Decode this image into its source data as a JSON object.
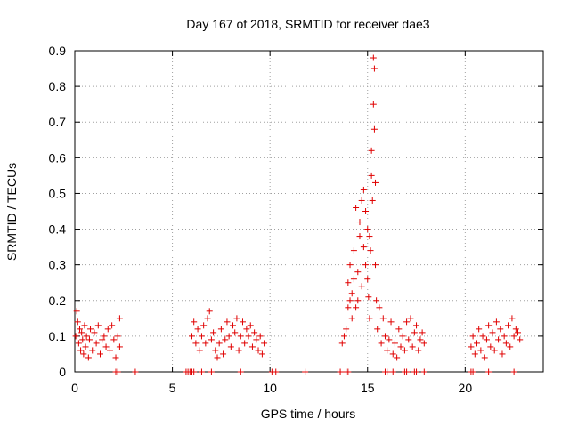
{
  "chart_data": {
    "type": "scatter",
    "title": "Day 167 of 2018, SRMTID for receiver dae3",
    "xlabel": "GPS time / hours",
    "ylabel": "SRMTID / TECUs",
    "xlim": [
      0,
      24
    ],
    "ylim": [
      0,
      0.9
    ],
    "x_ticks": [
      0,
      5,
      10,
      15,
      20
    ],
    "y_ticks": [
      0,
      0.1,
      0.2,
      0.3,
      0.4,
      0.5,
      0.6,
      0.7,
      0.8,
      0.9
    ],
    "x_tick_labels": [
      "0",
      "5",
      "10",
      "15",
      "20"
    ],
    "y_tick_labels": [
      "0",
      "0.1",
      "0.2",
      "0.3",
      "0.4",
      "0.5",
      "0.6",
      "0.7",
      "0.8",
      "0.9"
    ],
    "grid": true,
    "marker": "+",
    "series_color": "#e00000",
    "series": [
      {
        "name": "SRMTID",
        "points": [
          [
            0.05,
            0.1
          ],
          [
            0.1,
            0.17
          ],
          [
            0.15,
            0.14
          ],
          [
            0.2,
            0.08
          ],
          [
            0.25,
            0.12
          ],
          [
            0.3,
            0.06
          ],
          [
            0.35,
            0.11
          ],
          [
            0.4,
            0.09
          ],
          [
            0.45,
            0.05
          ],
          [
            0.5,
            0.13
          ],
          [
            0.55,
            0.07
          ],
          [
            0.6,
            0.1
          ],
          [
            0.7,
            0.04
          ],
          [
            0.75,
            0.09
          ],
          [
            0.8,
            0.12
          ],
          [
            0.9,
            0.06
          ],
          [
            1.0,
            0.11
          ],
          [
            1.1,
            0.08
          ],
          [
            1.2,
            0.13
          ],
          [
            1.3,
            0.05
          ],
          [
            1.4,
            0.09
          ],
          [
            1.5,
            0.1
          ],
          [
            1.6,
            0.07
          ],
          [
            1.7,
            0.12
          ],
          [
            1.8,
            0.06
          ],
          [
            1.9,
            0.13
          ],
          [
            2.0,
            0.09
          ],
          [
            2.1,
            0.04
          ],
          [
            2.2,
            0.1
          ],
          [
            2.3,
            0.15
          ],
          [
            2.3,
            0.07
          ],
          [
            6.0,
            0.1
          ],
          [
            6.1,
            0.14
          ],
          [
            6.2,
            0.08
          ],
          [
            6.3,
            0.12
          ],
          [
            6.4,
            0.06
          ],
          [
            6.5,
            0.1
          ],
          [
            6.6,
            0.13
          ],
          [
            6.7,
            0.08
          ],
          [
            6.8,
            0.15
          ],
          [
            6.9,
            0.17
          ],
          [
            7.0,
            0.09
          ],
          [
            7.1,
            0.11
          ],
          [
            7.2,
            0.06
          ],
          [
            7.3,
            0.04
          ],
          [
            7.4,
            0.08
          ],
          [
            7.5,
            0.12
          ],
          [
            7.6,
            0.05
          ],
          [
            7.7,
            0.09
          ],
          [
            7.8,
            0.14
          ],
          [
            7.9,
            0.1
          ],
          [
            8.0,
            0.07
          ],
          [
            8.1,
            0.13
          ],
          [
            8.2,
            0.11
          ],
          [
            8.3,
            0.15
          ],
          [
            8.4,
            0.06
          ],
          [
            8.5,
            0.1
          ],
          [
            8.6,
            0.14
          ],
          [
            8.7,
            0.08
          ],
          [
            8.8,
            0.12
          ],
          [
            8.9,
            0.1
          ],
          [
            9.0,
            0.13
          ],
          [
            9.1,
            0.07
          ],
          [
            9.2,
            0.11
          ],
          [
            9.3,
            0.09
          ],
          [
            9.4,
            0.06
          ],
          [
            9.5,
            0.1
          ],
          [
            9.6,
            0.05
          ],
          [
            9.7,
            0.08
          ],
          [
            13.7,
            0.08
          ],
          [
            13.8,
            0.1
          ],
          [
            13.9,
            0.12
          ],
          [
            14.0,
            0.18
          ],
          [
            14.0,
            0.25
          ],
          [
            14.1,
            0.2
          ],
          [
            14.1,
            0.3
          ],
          [
            14.2,
            0.15
          ],
          [
            14.2,
            0.22
          ],
          [
            14.3,
            0.26
          ],
          [
            14.3,
            0.34
          ],
          [
            14.4,
            0.18
          ],
          [
            14.4,
            0.46
          ],
          [
            14.5,
            0.28
          ],
          [
            14.5,
            0.2
          ],
          [
            14.6,
            0.38
          ],
          [
            14.6,
            0.42
          ],
          [
            14.7,
            0.24
          ],
          [
            14.7,
            0.48
          ],
          [
            14.8,
            0.35
          ],
          [
            14.8,
            0.51
          ],
          [
            14.9,
            0.45
          ],
          [
            14.9,
            0.3
          ],
          [
            15.0,
            0.4
          ],
          [
            15.0,
            0.26
          ],
          [
            15.05,
            0.21
          ],
          [
            15.1,
            0.38
          ],
          [
            15.1,
            0.15
          ],
          [
            15.15,
            0.34
          ],
          [
            15.2,
            0.55
          ],
          [
            15.2,
            0.62
          ],
          [
            15.25,
            0.48
          ],
          [
            15.3,
            0.88
          ],
          [
            15.3,
            0.75
          ],
          [
            15.35,
            0.85
          ],
          [
            15.35,
            0.68
          ],
          [
            15.4,
            0.53
          ],
          [
            15.4,
            0.3
          ],
          [
            15.45,
            0.2
          ],
          [
            15.5,
            0.12
          ],
          [
            15.6,
            0.18
          ],
          [
            15.7,
            0.08
          ],
          [
            15.8,
            0.15
          ],
          [
            15.9,
            0.1
          ],
          [
            16.0,
            0.06
          ],
          [
            16.1,
            0.09
          ],
          [
            16.2,
            0.14
          ],
          [
            16.3,
            0.05
          ],
          [
            16.4,
            0.08
          ],
          [
            16.5,
            0.04
          ],
          [
            16.6,
            0.12
          ],
          [
            16.7,
            0.07
          ],
          [
            16.8,
            0.1
          ],
          [
            16.9,
            0.06
          ],
          [
            17.0,
            0.14
          ],
          [
            17.1,
            0.09
          ],
          [
            17.2,
            0.15
          ],
          [
            17.3,
            0.07
          ],
          [
            17.4,
            0.11
          ],
          [
            17.5,
            0.13
          ],
          [
            17.6,
            0.06
          ],
          [
            17.7,
            0.09
          ],
          [
            17.8,
            0.11
          ],
          [
            17.9,
            0.08
          ],
          [
            20.3,
            0.07
          ],
          [
            20.4,
            0.1
          ],
          [
            20.5,
            0.05
          ],
          [
            20.6,
            0.08
          ],
          [
            20.7,
            0.12
          ],
          [
            20.8,
            0.06
          ],
          [
            20.9,
            0.1
          ],
          [
            21.0,
            0.04
          ],
          [
            21.1,
            0.09
          ],
          [
            21.2,
            0.13
          ],
          [
            21.3,
            0.07
          ],
          [
            21.4,
            0.11
          ],
          [
            21.5,
            0.06
          ],
          [
            21.6,
            0.14
          ],
          [
            21.7,
            0.09
          ],
          [
            21.8,
            0.12
          ],
          [
            21.9,
            0.05
          ],
          [
            22.0,
            0.1
          ],
          [
            22.1,
            0.08
          ],
          [
            22.2,
            0.13
          ],
          [
            22.3,
            0.07
          ],
          [
            22.4,
            0.15
          ],
          [
            22.5,
            0.1
          ],
          [
            22.6,
            0.12
          ],
          [
            22.7,
            0.11
          ],
          [
            22.8,
            0.09
          ],
          [
            2.1,
            0.0
          ],
          [
            2.2,
            0.0
          ],
          [
            3.1,
            0.0
          ],
          [
            5.7,
            0.0
          ],
          [
            5.8,
            0.0
          ],
          [
            5.9,
            0.0
          ],
          [
            6.0,
            0.0
          ],
          [
            6.1,
            0.0
          ],
          [
            6.5,
            0.0
          ],
          [
            7.0,
            0.0
          ],
          [
            8.5,
            0.0
          ],
          [
            10.1,
            0.0
          ],
          [
            10.3,
            0.0
          ],
          [
            11.8,
            0.0
          ],
          [
            13.6,
            0.0
          ],
          [
            13.9,
            0.0
          ],
          [
            14.0,
            0.0
          ],
          [
            15.9,
            0.0
          ],
          [
            16.0,
            0.0
          ],
          [
            16.3,
            0.0
          ],
          [
            16.9,
            0.0
          ],
          [
            17.0,
            0.0
          ],
          [
            17.4,
            0.0
          ],
          [
            17.5,
            0.0
          ],
          [
            17.9,
            0.0
          ],
          [
            20.3,
            0.0
          ],
          [
            20.4,
            0.0
          ],
          [
            21.2,
            0.0
          ],
          [
            22.5,
            0.0
          ]
        ]
      }
    ]
  }
}
